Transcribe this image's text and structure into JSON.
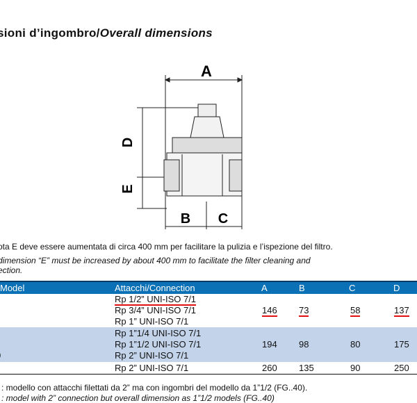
{
  "title": {
    "it": "sioni d’ingombro/",
    "en": "Overall dimensions"
  },
  "drawing": {
    "labels": [
      "A",
      "D",
      "E",
      "B",
      "C"
    ]
  },
  "notes": {
    "it": "ota E deve essere aumentata di circa 400 mm per facilitare la pulizia e l’ispezione del filtro.",
    "en1": "dimension “E” must be increased by about 400 mm to facilitate the filter cleaning and",
    "en2": "ection."
  },
  "table": {
    "headers": [
      "Model",
      "Attacchi/Connection",
      "A",
      "B",
      "C",
      "D"
    ],
    "rows": [
      {
        "model": "",
        "connections": [
          "Rp 1/2” UNI-ISO 7/1",
          "Rp 3/4” UNI-ISO 7/1",
          "Rp 1” UNI-ISO 7/1"
        ],
        "A": "146",
        "B": "73",
        "C": "58",
        "D": "137"
      },
      {
        "model": "0",
        "connections": [
          "Rp 1”1/4 UNI-ISO 7/1",
          "Rp 1”1/2 UNI-ISO 7/1",
          "Rp 2” UNI-ISO 7/1"
        ],
        "A": "194",
        "B": "98",
        "C": "80",
        "D": "175"
      },
      {
        "model": "",
        "connections": [
          "Rp 2” UNI-ISO 7/1"
        ],
        "A": "260",
        "B": "135",
        "C": "90",
        "D": "250"
      }
    ],
    "row_colors": [
      "#ffffff",
      "#c3d4ea",
      "#ffffff"
    ],
    "header_color": "#0a71b6"
  },
  "footer": {
    "it": ": modello con attacchi filettati da 2” ma con ingombri del modello da 1”1/2 (FG..40).",
    "en": ": model with 2” connection but overall dimension as 1”1/2 models (FG..40)"
  }
}
